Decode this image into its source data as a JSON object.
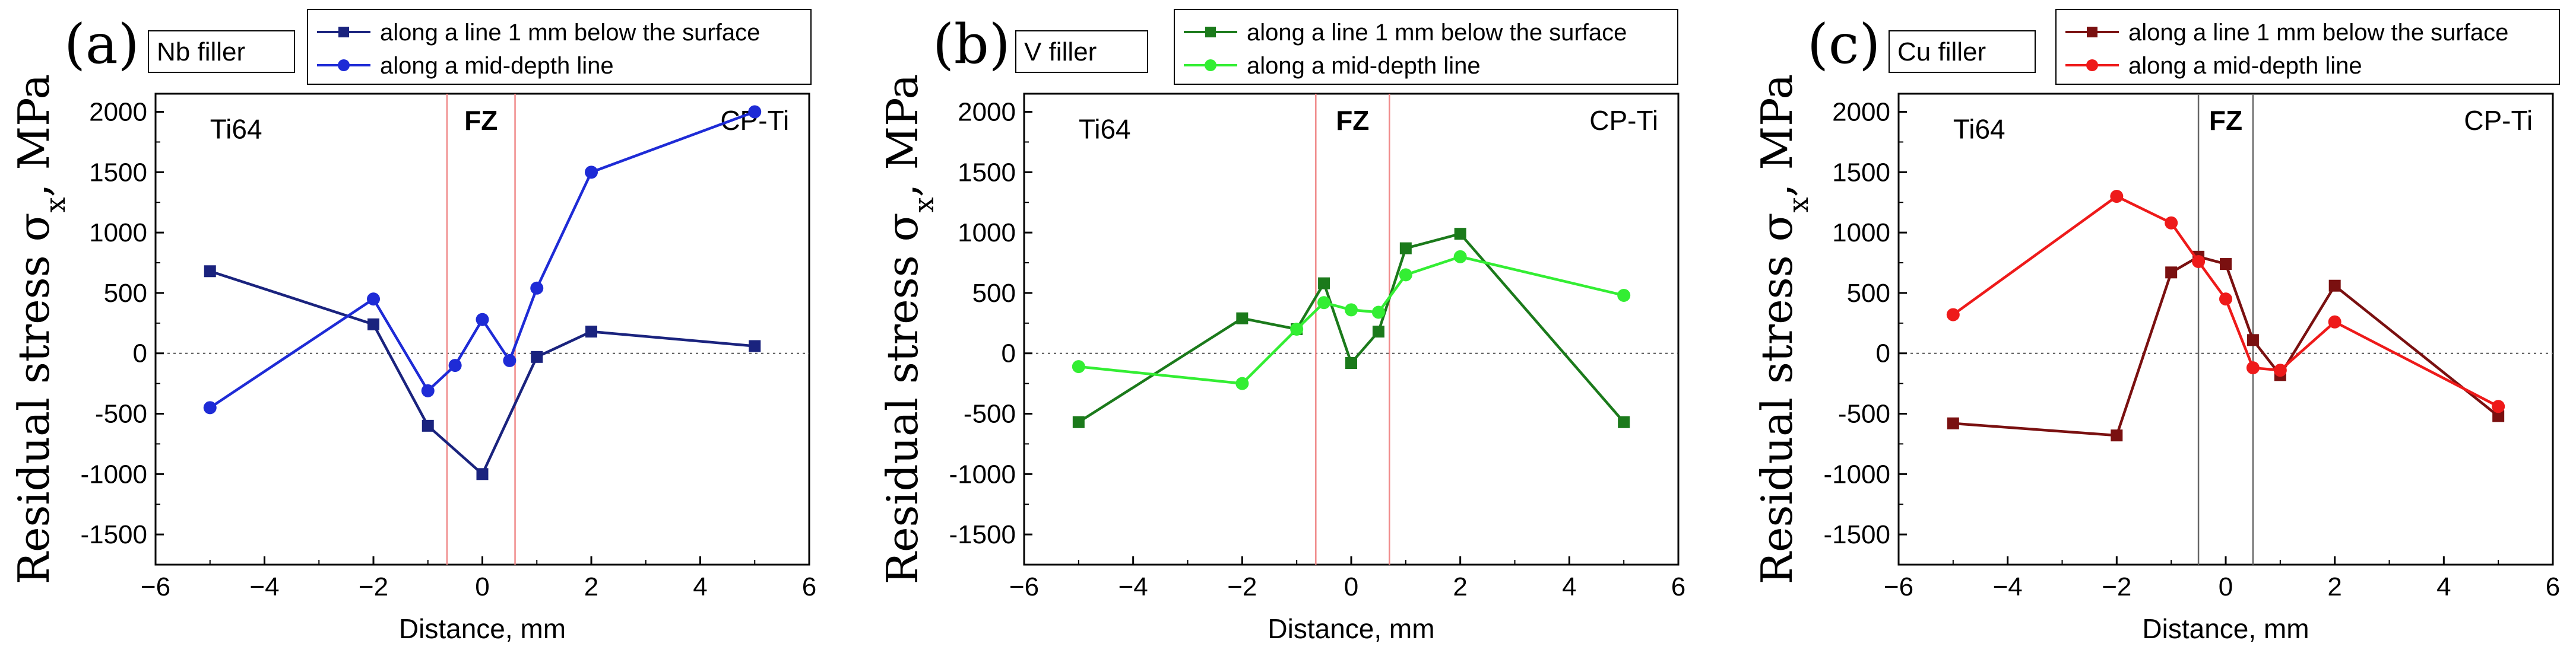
{
  "chart_data": [
    {
      "type": "line",
      "panel_label": "(a)",
      "filler_label": "Nb filler",
      "title": "",
      "xlabel": "Distance, mm",
      "ylabel": "Residual stress σ",
      "ylabel_sub": "x",
      "ylabel_unit": ", MPa",
      "xlim": [
        -6,
        6
      ],
      "ylim": [
        -1750,
        2150
      ],
      "xticks": [
        "−6",
        "−4",
        "−2",
        "0",
        "2",
        "4",
        "6"
      ],
      "xtick_values": [
        -6,
        -4,
        -2,
        0,
        2,
        4,
        6
      ],
      "yticks": [
        "-1500",
        "-1000",
        "-500",
        "0",
        "500",
        "1000",
        "1500",
        "2000"
      ],
      "ytick_values": [
        -1500,
        -1000,
        -500,
        0,
        500,
        1000,
        1500,
        2000
      ],
      "region_left": "Ti64",
      "region_right": "CP-Ti",
      "fz_label": "FZ",
      "fz_bounds": [
        -0.65,
        0.6
      ],
      "fz_color": "#f08a8a",
      "series": [
        {
          "name": "along a line 1 mm below the surface",
          "marker": "square",
          "color": "#1a237e",
          "x": [
            -5,
            -2,
            -1,
            0,
            1,
            2,
            5
          ],
          "y": [
            680,
            240,
            -600,
            -1000,
            -30,
            180,
            60
          ]
        },
        {
          "name": "along a mid-depth line",
          "marker": "circle",
          "color": "#1e2bd6",
          "x": [
            -5,
            -2,
            -1,
            -0.5,
            0,
            0.5,
            1,
            2,
            5
          ],
          "y": [
            -450,
            450,
            -310,
            -100,
            280,
            -60,
            540,
            1500,
            2000
          ]
        }
      ]
    },
    {
      "type": "line",
      "panel_label": "(b)",
      "filler_label": "V filler",
      "title": "",
      "xlabel": "Distance, mm",
      "ylabel": "Residual stress σ",
      "ylabel_sub": "x",
      "ylabel_unit": ", MPa",
      "xlim": [
        -6,
        6
      ],
      "ylim": [
        -1750,
        2150
      ],
      "xticks": [
        "−6",
        "−4",
        "−2",
        "0",
        "2",
        "4",
        "6"
      ],
      "xtick_values": [
        -6,
        -4,
        -2,
        0,
        2,
        4,
        6
      ],
      "yticks": [
        "-1500",
        "-1000",
        "-500",
        "0",
        "500",
        "1000",
        "1500",
        "2000"
      ],
      "ytick_values": [
        -1500,
        -1000,
        -500,
        0,
        500,
        1000,
        1500,
        2000
      ],
      "region_left": "Ti64",
      "region_right": "CP-Ti",
      "fz_label": "FZ",
      "fz_bounds": [
        -0.65,
        0.7
      ],
      "fz_color": "#f08a8a",
      "series": [
        {
          "name": "along a line 1 mm below the surface",
          "marker": "square",
          "color": "#1b7a1b",
          "x": [
            -5,
            -2,
            -1,
            -0.5,
            0,
            0.5,
            1,
            2,
            5
          ],
          "y": [
            -570,
            290,
            200,
            580,
            -80,
            180,
            870,
            990,
            -570
          ]
        },
        {
          "name": "along a mid-depth line",
          "marker": "circle",
          "color": "#33ee33",
          "x": [
            -5,
            -2,
            -1,
            -0.5,
            0,
            0.5,
            1,
            2,
            5
          ],
          "y": [
            -110,
            -250,
            200,
            420,
            360,
            340,
            650,
            800,
            480
          ]
        }
      ]
    },
    {
      "type": "line",
      "panel_label": "(c)",
      "filler_label": "Cu filler",
      "title": "",
      "xlabel": "Distance, mm",
      "ylabel": "Residual stress σ",
      "ylabel_sub": "x",
      "ylabel_unit": ", MPa",
      "xlim": [
        -6,
        6
      ],
      "ylim": [
        -1750,
        2150
      ],
      "xticks": [
        "−6",
        "−4",
        "−2",
        "0",
        "2",
        "4",
        "6"
      ],
      "xtick_values": [
        -6,
        -4,
        -2,
        0,
        2,
        4,
        6
      ],
      "yticks": [
        "-1500",
        "-1000",
        "-500",
        "0",
        "500",
        "1000",
        "1500",
        "2000"
      ],
      "ytick_values": [
        -1500,
        -1000,
        -500,
        0,
        500,
        1000,
        1500,
        2000
      ],
      "region_left": "Ti64",
      "region_right": "CP-Ti",
      "fz_label": "FZ",
      "fz_bounds": [
        -0.5,
        0.5
      ],
      "fz_color": "#666666",
      "series": [
        {
          "name": "along a line 1 mm below the surface",
          "marker": "square",
          "color": "#7a1010",
          "x": [
            -5,
            -2,
            -1,
            -0.5,
            0,
            0.5,
            1,
            2,
            5
          ],
          "y": [
            -580,
            -680,
            670,
            800,
            740,
            110,
            -180,
            560,
            -520
          ]
        },
        {
          "name": "along a mid-depth line",
          "marker": "circle",
          "color": "#ee1a1a",
          "x": [
            -5,
            -2,
            -1,
            -0.5,
            0,
            0.5,
            1,
            2,
            5
          ],
          "y": [
            320,
            1300,
            1080,
            760,
            450,
            -120,
            -140,
            260,
            -440
          ]
        }
      ]
    }
  ]
}
